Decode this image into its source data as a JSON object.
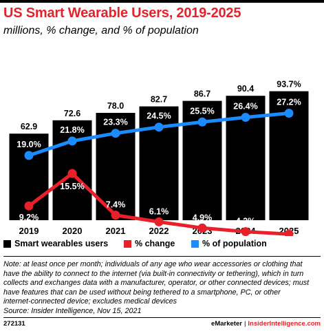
{
  "header": {
    "title": "US Smart Wearable Users, 2019-2025",
    "subtitle": "millions, % change, and % of population"
  },
  "colors": {
    "title": "#e8202a",
    "bars": "#000000",
    "change": "#e8202a",
    "population": "#1a8cff"
  },
  "chart_data": {
    "type": "bar",
    "categories": [
      "2019",
      "2020",
      "2021",
      "2022",
      "2023",
      "2024",
      "2025"
    ],
    "series": [
      {
        "name": "Smart wearables users",
        "type": "bar",
        "values": [
          62.9,
          72.6,
          78.0,
          82.7,
          86.7,
          90.4,
          93.7
        ],
        "labels": [
          "62.9",
          "72.6",
          "78.0",
          "82.7",
          "86.7",
          "90.4",
          "93.7%"
        ]
      },
      {
        "name": "% change",
        "type": "line",
        "values": [
          9.2,
          15.5,
          7.4,
          6.1,
          4.9,
          4.2,
          3.7
        ],
        "labels": [
          "9.2%",
          "15.5%",
          "7.4%",
          "6.1%",
          "4.9%",
          "4.2%",
          "3.7%"
        ]
      },
      {
        "name": "% of population",
        "type": "line",
        "values": [
          19.0,
          21.8,
          23.3,
          24.5,
          25.5,
          26.4,
          27.2
        ],
        "labels": [
          "19.0%",
          "21.8%",
          "23.3%",
          "24.5%",
          "25.5%",
          "26.4%",
          "27.2%"
        ]
      }
    ],
    "ylim_bars": [
      0,
      100
    ],
    "grid": false,
    "legend": "bottom"
  },
  "legend": {
    "items": [
      "Smart wearables users",
      "% change",
      "% of population"
    ]
  },
  "notes": {
    "lines": [
      "Note: at least once per month; individuals of any age who wear accessories or clothing that",
      "have the ability to connect to the internet (via built-in connectivity or tethering), which in turn",
      "collects and exchanges data with a manufacturer, operator, or other connected devices; must",
      "have features that can be used without being tethered to a smartphone, PC, or other",
      "internet-connected device; excludes medical devices",
      "Source: Insider Intelligence, Nov 15, 2021"
    ]
  },
  "footer": {
    "id": "272131",
    "brand": "eMarketer",
    "separator": "|",
    "brand2": "InsiderIntelligence.com"
  }
}
